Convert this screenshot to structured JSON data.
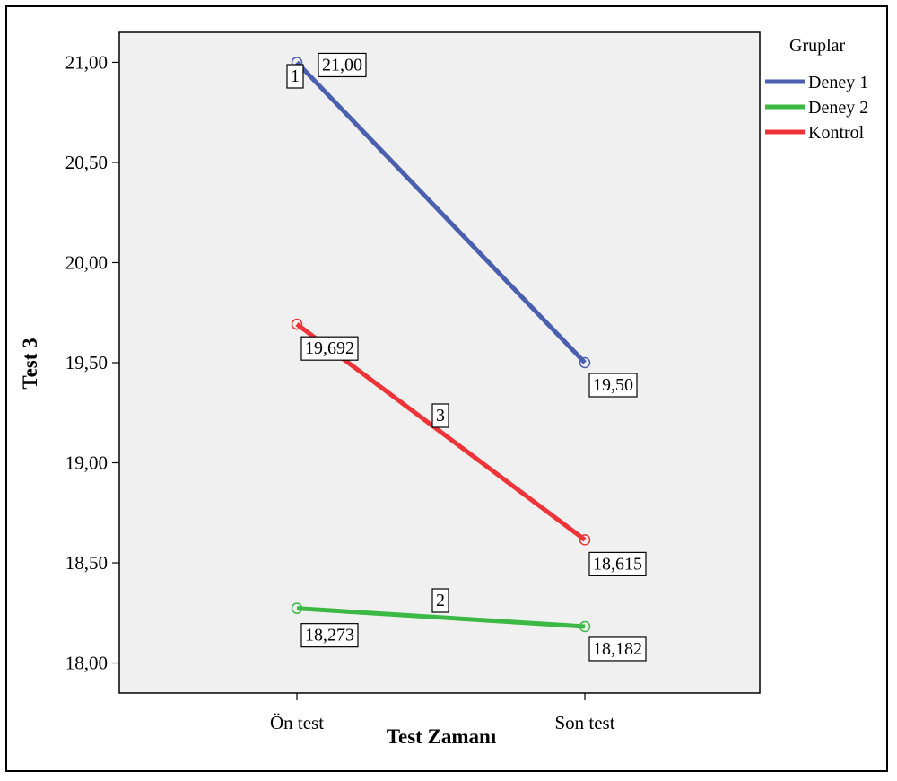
{
  "chart_data": {
    "type": "line",
    "xlabel": "Test Zamanı",
    "ylabel": "Test 3",
    "categories": [
      "Ön test",
      "Son test"
    ],
    "ylim": [
      17.85,
      21.15
    ],
    "yticks": [
      18.0,
      18.5,
      19.0,
      19.5,
      20.0,
      20.5,
      21.0
    ],
    "ytick_labels": [
      "18,00",
      "18,50",
      "19,00",
      "19,50",
      "20,00",
      "20,50",
      "21,00"
    ],
    "grid": false,
    "legend": {
      "title": "Gruplar",
      "position": "right"
    },
    "series": [
      {
        "name": "Deney 1",
        "color": "#4a5fad",
        "line_id": "1",
        "values": [
          21.0,
          19.5
        ],
        "value_labels": [
          "21,00",
          "19,50"
        ]
      },
      {
        "name": "Deney 2",
        "color": "#3cb944",
        "line_id": "2",
        "values": [
          18.273,
          18.182
        ],
        "value_labels": [
          "18,273",
          "18,182"
        ]
      },
      {
        "name": "Kontrol",
        "color": "#ee3438",
        "line_id": "3",
        "values": [
          19.692,
          18.615
        ],
        "value_labels": [
          "19,692",
          "18,615"
        ]
      }
    ],
    "plot_background": "#f0f0f0"
  }
}
